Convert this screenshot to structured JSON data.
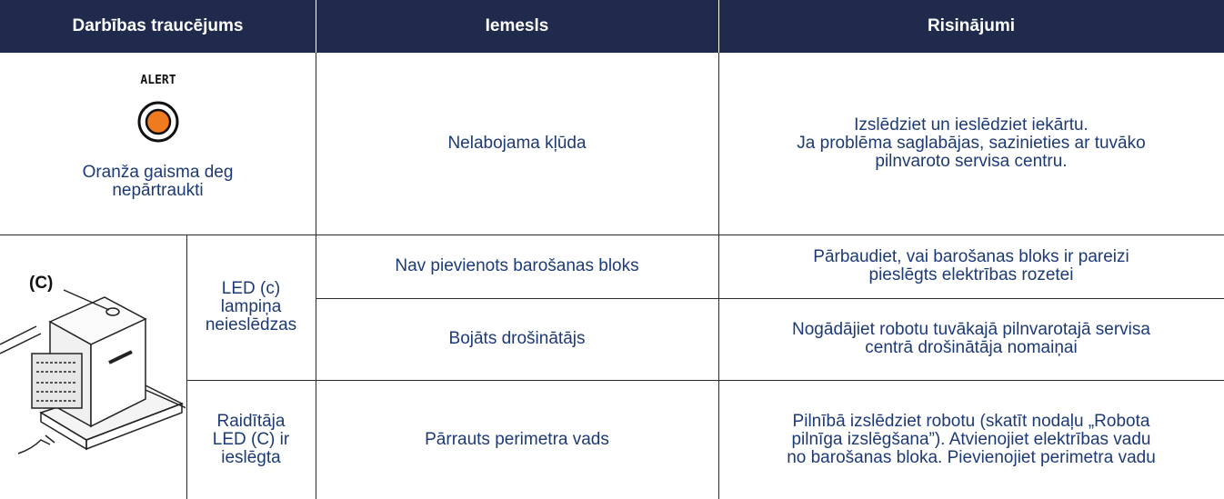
{
  "table": {
    "headers": [
      "Darbības traucējums",
      "Iemesls",
      "Risinājumi"
    ],
    "rows": [
      {
        "indicator": "ALERT",
        "problem": "Oranža gaisma deg\nnepārtraukti",
        "cause": "Nelabojama kļūda",
        "solution": "Izslēdziet un ieslēdziet iekārtu.\nJa problēma saglabājas, sazinieties ar tuvāko\npilnvaroto servisa centru."
      },
      {
        "image_label": "(C)",
        "problem": "LED (c)\nlampiņa\nneieslēdzas",
        "causes": [
          {
            "cause": "Nav pievienots barošanas bloks",
            "solution": "Pārbaudiet, vai barošanas bloks ir pareizi\npieslēgts elektrības rozetei"
          },
          {
            "cause": "Bojāts drošinātājs",
            "solution": "Nogādājiet robotu tuvākajā pilnvarotajā servisa\ncentrā drošinātāja nomaiņai"
          }
        ]
      },
      {
        "problem": "Raidītāja\nLED (C) ir\nieslēgta",
        "cause": "Pārrauts perimetra vads",
        "solution": "Pilnībā izslēdziet robotu (skatīt nodaļu „Robota\npilnīga izslēgšana”). Atvienojiet elektrības vadu\nno barošanas bloka. Pievienojiet perimetra vadu"
      }
    ]
  }
}
